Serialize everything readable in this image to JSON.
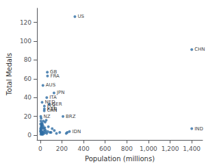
{
  "chart_data": {
    "type": "scatter",
    "xlabel": "Population (millions)",
    "ylabel": "Total Medals",
    "xlim": [
      -30,
      1500
    ],
    "ylim": [
      -5,
      135
    ],
    "xticks": [
      0,
      200,
      400,
      600,
      800,
      1000,
      1200,
      1400
    ],
    "yticks": [
      0,
      20,
      40,
      60,
      80,
      100,
      120
    ],
    "color": "#2e6da4",
    "grid": false,
    "x": [
      10,
      4,
      8,
      12,
      7,
      3,
      15,
      6,
      20,
      9,
      11,
      5,
      30,
      40,
      50,
      45,
      22,
      18,
      35,
      70,
      100,
      55,
      110,
      14,
      16,
      28,
      8,
      32,
      24,
      60,
      75,
      90,
      48,
      130,
      150,
      180,
      3,
      2,
      6,
      19,
      26,
      42,
      240,
      250,
      320,
      1400,
      1400,
      65,
      67,
      25,
      127,
      60,
      17,
      83,
      210,
      5,
      270,
      38,
      37,
      38
    ],
    "values": [
      2,
      5,
      8,
      10,
      3,
      7,
      4,
      6,
      12,
      9,
      11,
      1,
      8,
      6,
      5,
      14,
      3,
      2,
      2,
      4,
      3,
      16,
      7,
      13,
      1,
      15,
      18,
      4,
      1,
      2,
      9,
      3,
      3,
      5,
      2,
      3,
      12,
      4,
      15,
      7,
      10,
      8,
      2,
      3,
      126,
      91,
      7,
      67,
      63,
      53,
      45,
      40,
      35,
      33,
      20,
      20,
      4,
      28,
      26,
      31
    ],
    "labels": [
      null,
      null,
      null,
      null,
      null,
      null,
      null,
      null,
      null,
      null,
      null,
      null,
      null,
      null,
      null,
      null,
      null,
      null,
      null,
      null,
      null,
      null,
      null,
      null,
      null,
      null,
      null,
      null,
      null,
      null,
      null,
      null,
      null,
      null,
      null,
      null,
      null,
      null,
      null,
      null,
      null,
      null,
      null,
      null,
      "US",
      "CHN",
      "IND",
      "GB",
      "FRA",
      "AUS",
      "JPN",
      "ITA",
      "NED",
      "GER",
      "BRZ",
      "NZ",
      "IDN",
      "KAN",
      "CAN",
      "POL"
    ]
  }
}
